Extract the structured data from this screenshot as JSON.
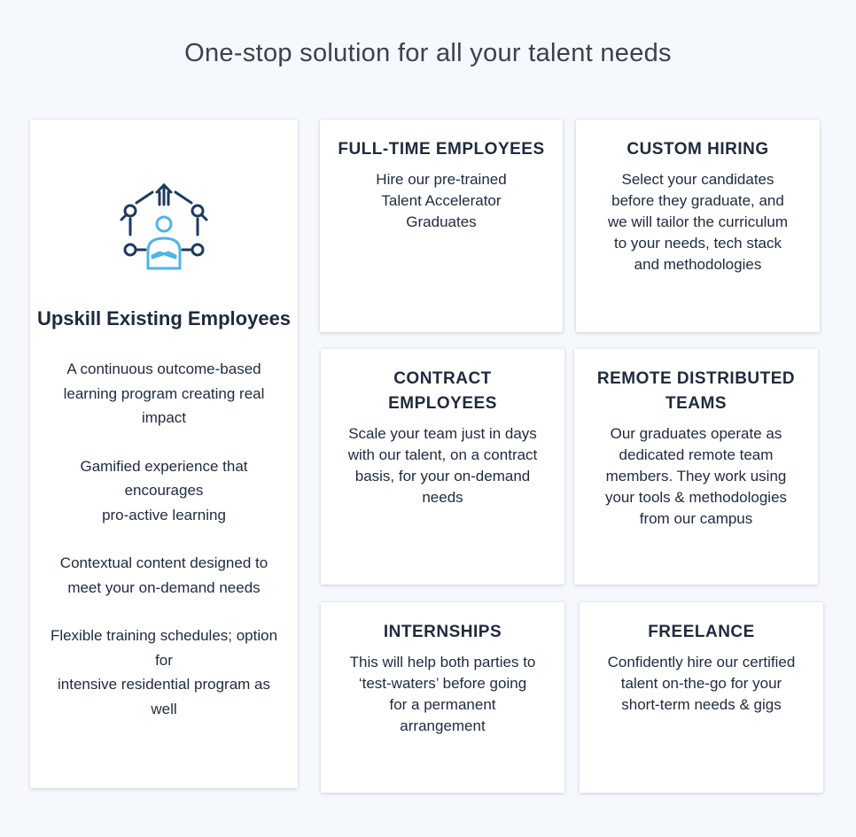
{
  "page_title": "One-stop solution for all your talent needs",
  "upskill": {
    "icon": "team-network-icon",
    "title": "Upskill Existing Employees",
    "points": [
      "A continuous outcome-based\nlearning program creating real\nimpact",
      "Gamified experience that\nencourages\npro-active learning",
      "Contextual content designed to\nmeet your on-demand needs",
      "Flexible training schedules; option\nfor\nintensive residential program as\nwell"
    ]
  },
  "cards": {
    "full_time": {
      "title": "FULL-TIME EMPLOYEES",
      "text": "Hire our pre-trained\nTalent Accelerator\nGraduates"
    },
    "custom_hiring": {
      "title": "CUSTOM HIRING",
      "text": "Select your candidates\nbefore they graduate, and\nwe will tailor the curriculum\nto your needs, tech stack\nand methodologies"
    },
    "contract": {
      "title": "CONTRACT\nEMPLOYEES",
      "text": "Scale your team just in days\nwith our talent, on a contract\nbasis, for your on-demand\nneeds"
    },
    "remote": {
      "title": "REMOTE DISTRIBUTED\nTEAMS",
      "text": "Our graduates operate as\ndedicated remote team\nmembers. They work using\nyour tools & methodologies\nfrom our campus"
    },
    "internships": {
      "title": "INTERNSHIPS",
      "text": "This will help both parties to\n‘test-waters’ before going\nfor a permanent\narrangement"
    },
    "freelance": {
      "title": "FREELANCE",
      "text": "Confidently hire our certified\ntalent on-the-go for your\nshort-term needs & gigs"
    }
  },
  "colors": {
    "background": "#f5f8fd",
    "card": "#ffffff",
    "text": "#1f2a3c",
    "icon_dark": "#1e3a5f",
    "icon_accent": "#4fb3e8"
  }
}
